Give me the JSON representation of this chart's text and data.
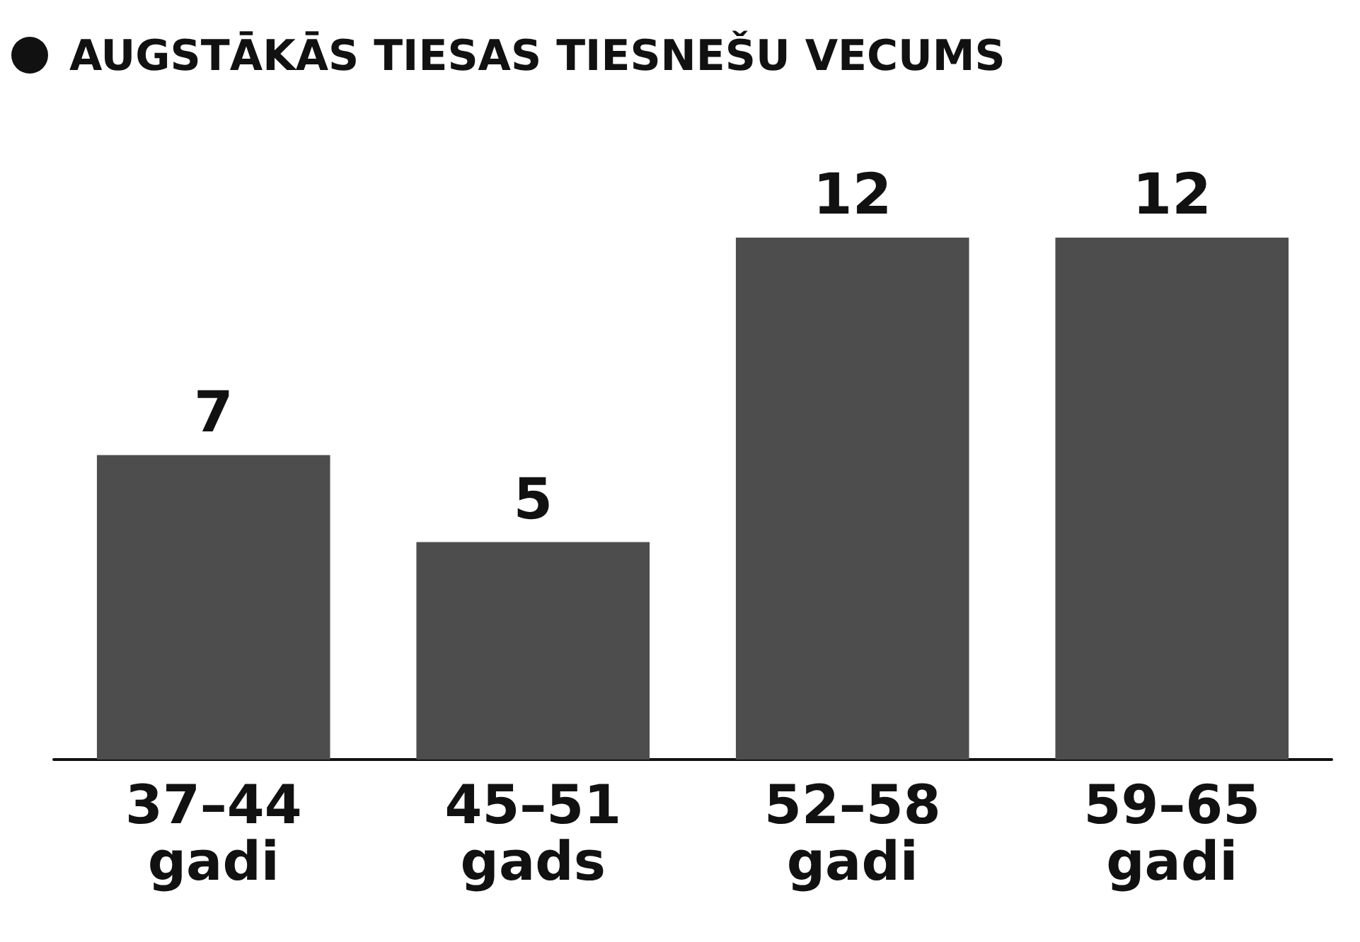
{
  "chart_data": {
    "type": "bar",
    "title": "AUGSTĀKĀS TIESAS TIESNEŠU VECUMS",
    "categories": [
      "37–44\ngadi",
      "45–51\ngads",
      "52–58\ngadi",
      "59–65\ngadi"
    ],
    "values": [
      7,
      5,
      12,
      12
    ],
    "color": "#4d4d4d",
    "data_labels": true
  }
}
